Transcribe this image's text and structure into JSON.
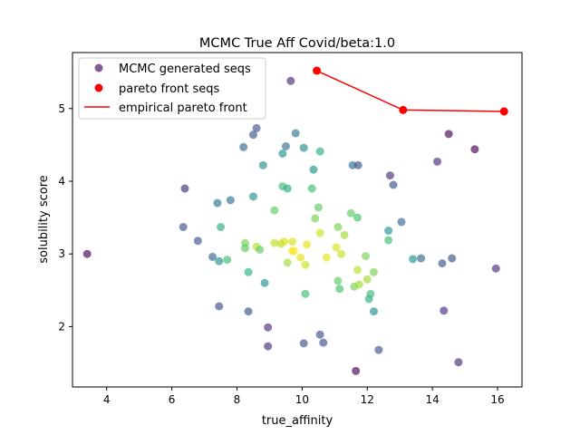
{
  "chart_data": {
    "type": "scatter",
    "title": "MCMC True Aff Covid/beta:1.0",
    "xlabel": "true_affinity",
    "ylabel": "solubility score",
    "xlim": [
      2.95,
      16.75
    ],
    "ylim": [
      1.17,
      5.77
    ],
    "xticks": [
      4,
      6,
      8,
      10,
      12,
      14,
      16
    ],
    "yticks": [
      2,
      3,
      4,
      5
    ],
    "legend_position": "upper-left",
    "grid": false,
    "colors": {
      "pareto": "#ff0000",
      "legend_mcmc": "#440154"
    },
    "legend": [
      {
        "label": "MCMC generated seqs",
        "kind": "marker",
        "color": "#440154"
      },
      {
        "label": "pareto front seqs",
        "kind": "marker",
        "color": "#ff0000"
      },
      {
        "label": "empirical pareto front",
        "kind": "line",
        "color": "#ff0000"
      }
    ],
    "series": [
      {
        "name": "MCMC generated seqs",
        "points": [
          {
            "x": 3.4,
            "y": 3.0,
            "c": "#440154"
          },
          {
            "x": 6.4,
            "y": 3.9,
            "c": "#472d7b"
          },
          {
            "x": 6.35,
            "y": 3.37,
            "c": "#3b528b"
          },
          {
            "x": 6.8,
            "y": 3.18,
            "c": "#3b528b"
          },
          {
            "x": 7.25,
            "y": 2.96,
            "c": "#31688e"
          },
          {
            "x": 7.4,
            "y": 3.7,
            "c": "#2c728e"
          },
          {
            "x": 7.45,
            "y": 2.28,
            "c": "#3b528b"
          },
          {
            "x": 7.45,
            "y": 2.9,
            "c": "#21918c"
          },
          {
            "x": 7.5,
            "y": 3.37,
            "c": "#28ae80"
          },
          {
            "x": 7.7,
            "y": 2.92,
            "c": "#3fbc73"
          },
          {
            "x": 7.8,
            "y": 3.74,
            "c": "#2c728e"
          },
          {
            "x": 8.25,
            "y": 3.15,
            "c": "#7ad151"
          },
          {
            "x": 8.25,
            "y": 3.08,
            "c": "#5ec962"
          },
          {
            "x": 8.2,
            "y": 4.47,
            "c": "#31688e"
          },
          {
            "x": 8.35,
            "y": 2.75,
            "c": "#28ae80"
          },
          {
            "x": 8.35,
            "y": 2.21,
            "c": "#3b528b"
          },
          {
            "x": 8.5,
            "y": 4.64,
            "c": "#3b528b"
          },
          {
            "x": 8.5,
            "y": 3.79,
            "c": "#21918c"
          },
          {
            "x": 8.6,
            "y": 4.73,
            "c": "#3b528b"
          },
          {
            "x": 8.6,
            "y": 3.1,
            "c": "#b5de2b"
          },
          {
            "x": 8.7,
            "y": 3.06,
            "c": "#5ec962"
          },
          {
            "x": 8.8,
            "y": 4.22,
            "c": "#21918c"
          },
          {
            "x": 8.85,
            "y": 2.6,
            "c": "#21918c"
          },
          {
            "x": 8.95,
            "y": 1.99,
            "c": "#472d7b"
          },
          {
            "x": 8.95,
            "y": 1.73,
            "c": "#472d7b"
          },
          {
            "x": 9.15,
            "y": 3.15,
            "c": "#bddf26"
          },
          {
            "x": 9.15,
            "y": 3.6,
            "c": "#5ec962"
          },
          {
            "x": 9.35,
            "y": 3.14,
            "c": "#bddf26"
          },
          {
            "x": 9.4,
            "y": 4.38,
            "c": "#21918c"
          },
          {
            "x": 9.4,
            "y": 3.93,
            "c": "#3fbc73"
          },
          {
            "x": 9.45,
            "y": 3.17,
            "c": "#d8e219"
          },
          {
            "x": 9.5,
            "y": 4.48,
            "c": "#2c728e"
          },
          {
            "x": 9.55,
            "y": 3.9,
            "c": "#28ae80"
          },
          {
            "x": 9.55,
            "y": 2.88,
            "c": "#a0da39"
          },
          {
            "x": 9.65,
            "y": 5.38,
            "c": "#482878"
          },
          {
            "x": 9.7,
            "y": 3.17,
            "c": "#d8e219"
          },
          {
            "x": 9.7,
            "y": 3.04,
            "c": "#e5e419"
          },
          {
            "x": 9.75,
            "y": 3.04,
            "c": "#fde725"
          },
          {
            "x": 9.8,
            "y": 4.66,
            "c": "#2c728e"
          },
          {
            "x": 9.95,
            "y": 2.95,
            "c": "#e5e419"
          },
          {
            "x": 10.05,
            "y": 4.46,
            "c": "#21918c"
          },
          {
            "x": 10.05,
            "y": 1.77,
            "c": "#3b528b"
          },
          {
            "x": 10.1,
            "y": 2.45,
            "c": "#3fbc73"
          },
          {
            "x": 10.1,
            "y": 2.85,
            "c": "#c8e020"
          },
          {
            "x": 10.15,
            "y": 3.13,
            "c": "#e5e419"
          },
          {
            "x": 10.3,
            "y": 3.9,
            "c": "#3fbc73"
          },
          {
            "x": 10.35,
            "y": 4.16,
            "c": "#21918c"
          },
          {
            "x": 10.4,
            "y": 3.49,
            "c": "#7ad151"
          },
          {
            "x": 10.5,
            "y": 3.64,
            "c": "#5ec962"
          },
          {
            "x": 10.55,
            "y": 4.41,
            "c": "#28ae80"
          },
          {
            "x": 10.55,
            "y": 3.29,
            "c": "#c8e020"
          },
          {
            "x": 10.55,
            "y": 1.89,
            "c": "#3b528b"
          },
          {
            "x": 10.65,
            "y": 1.78,
            "c": "#3b528b"
          },
          {
            "x": 10.75,
            "y": 2.95,
            "c": "#e5e419"
          },
          {
            "x": 11.05,
            "y": 3.09,
            "c": "#d8e219"
          },
          {
            "x": 11.1,
            "y": 3.37,
            "c": "#7ad151"
          },
          {
            "x": 11.1,
            "y": 2.63,
            "c": "#5ec962"
          },
          {
            "x": 11.15,
            "y": 2.52,
            "c": "#44bf70"
          },
          {
            "x": 11.2,
            "y": 3.0,
            "c": "#c8e020"
          },
          {
            "x": 11.3,
            "y": 3.26,
            "c": "#a0da39"
          },
          {
            "x": 11.5,
            "y": 3.56,
            "c": "#5ec962"
          },
          {
            "x": 11.55,
            "y": 4.22,
            "c": "#2c728e"
          },
          {
            "x": 11.6,
            "y": 2.55,
            "c": "#7ad151"
          },
          {
            "x": 11.65,
            "y": 1.39,
            "c": "#440154"
          },
          {
            "x": 11.7,
            "y": 3.5,
            "c": "#44bf70"
          },
          {
            "x": 11.7,
            "y": 2.78,
            "c": "#b5de2b"
          },
          {
            "x": 11.72,
            "y": 4.22,
            "c": "#3b528b"
          },
          {
            "x": 11.75,
            "y": 2.58,
            "c": "#a0da39"
          },
          {
            "x": 11.95,
            "y": 2.97,
            "c": "#7ad151"
          },
          {
            "x": 12.0,
            "y": 2.65,
            "c": "#a0da39"
          },
          {
            "x": 12.05,
            "y": 2.38,
            "c": "#28ae80"
          },
          {
            "x": 12.1,
            "y": 2.45,
            "c": "#3fbc73"
          },
          {
            "x": 12.2,
            "y": 2.75,
            "c": "#7ad151"
          },
          {
            "x": 12.2,
            "y": 2.21,
            "c": "#21918c"
          },
          {
            "x": 12.35,
            "y": 1.68,
            "c": "#3b528b"
          },
          {
            "x": 12.65,
            "y": 3.32,
            "c": "#21918c"
          },
          {
            "x": 12.65,
            "y": 3.19,
            "c": "#3fbc73"
          },
          {
            "x": 12.7,
            "y": 4.08,
            "c": "#472d7b"
          },
          {
            "x": 12.8,
            "y": 3.95,
            "c": "#3b528b"
          },
          {
            "x": 13.05,
            "y": 3.44,
            "c": "#31688e"
          },
          {
            "x": 13.4,
            "y": 2.93,
            "c": "#21918c"
          },
          {
            "x": 13.65,
            "y": 2.94,
            "c": "#31688e"
          },
          {
            "x": 14.15,
            "y": 4.27,
            "c": "#472d7b"
          },
          {
            "x": 14.3,
            "y": 2.87,
            "c": "#3b528b"
          },
          {
            "x": 14.35,
            "y": 2.22,
            "c": "#472d7b"
          },
          {
            "x": 14.5,
            "y": 4.65,
            "c": "#440154"
          },
          {
            "x": 14.6,
            "y": 2.94,
            "c": "#3b528b"
          },
          {
            "x": 14.8,
            "y": 1.51,
            "c": "#482878"
          },
          {
            "x": 15.3,
            "y": 4.44,
            "c": "#440154"
          },
          {
            "x": 15.95,
            "y": 2.8,
            "c": "#472d7b"
          }
        ]
      },
      {
        "name": "pareto front seqs",
        "points": [
          {
            "x": 10.45,
            "y": 5.52
          },
          {
            "x": 13.1,
            "y": 4.98
          },
          {
            "x": 16.2,
            "y": 4.96
          }
        ]
      }
    ]
  }
}
